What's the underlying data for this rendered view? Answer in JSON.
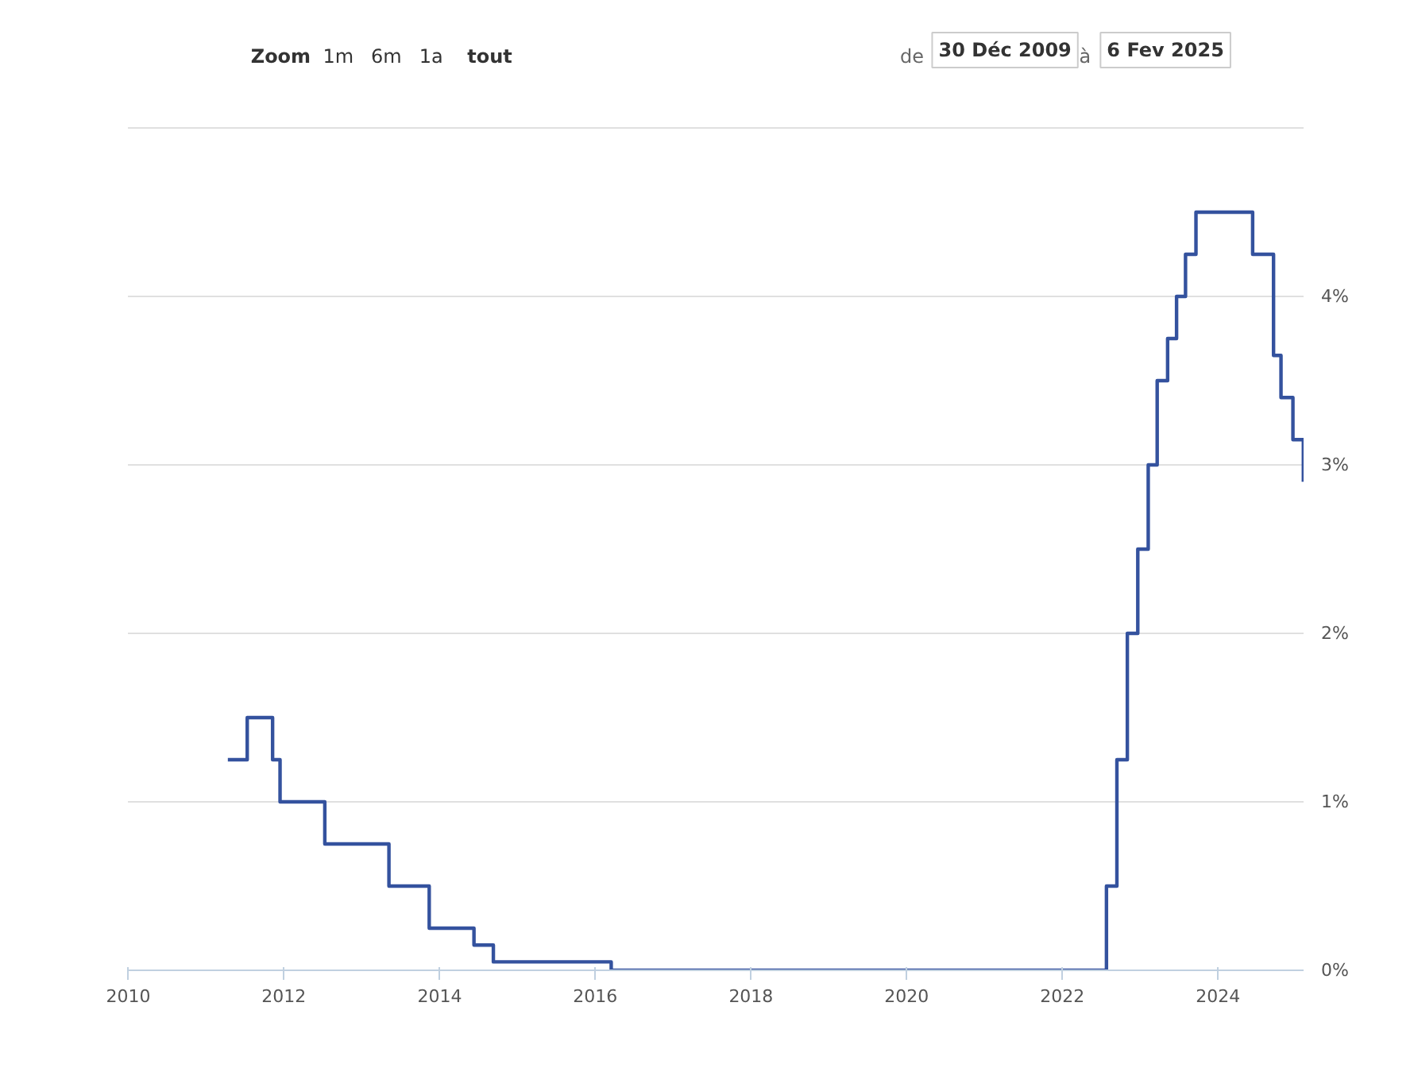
{
  "chart_data": {
    "type": "step",
    "annotations": [
      "Zoom",
      "1m",
      "6m",
      "1a",
      "tout",
      "de",
      "30 Déc 2009",
      "à",
      "6 Fev 2025"
    ],
    "x": [
      "2011-04-13",
      "2011-07-13",
      "2011-11-09",
      "2011-12-14",
      "2012-07-11",
      "2013-05-08",
      "2013-11-13",
      "2014-06-11",
      "2014-09-10",
      "2016-03-16",
      "2022-07-27",
      "2022-09-14",
      "2022-11-02",
      "2022-12-21",
      "2023-02-08",
      "2023-03-22",
      "2023-05-10",
      "2023-06-21",
      "2023-08-02",
      "2023-09-20",
      "2024-06-12",
      "2024-09-18",
      "2024-10-23",
      "2024-12-18",
      "2025-02-05"
    ],
    "series": [
      {
        "color": "#34529e",
        "values": [
          1.25,
          1.5,
          1.25,
          1.0,
          0.75,
          0.5,
          0.25,
          0.15,
          0.05,
          0.0,
          0.5,
          1.25,
          2.0,
          2.5,
          3.0,
          3.5,
          3.75,
          4.0,
          4.25,
          4.5,
          4.25,
          3.65,
          3.4,
          3.15,
          2.9
        ]
      }
    ],
    "xlim": [
      "2009-12-30",
      "2025-02-06"
    ],
    "xticks": [
      {
        "value": "2010-01-01",
        "label": "2010"
      },
      {
        "value": "2012-01-01",
        "label": "2012"
      },
      {
        "value": "2014-01-01",
        "label": "2014"
      },
      {
        "value": "2016-01-01",
        "label": "2016"
      },
      {
        "value": "2018-01-01",
        "label": "2018"
      },
      {
        "value": "2020-01-01",
        "label": "2020"
      },
      {
        "value": "2022-01-01",
        "label": "2022"
      },
      {
        "value": "2024-01-01",
        "label": "2024"
      }
    ],
    "ylim": [
      0,
      5
    ],
    "yticks": [
      {
        "value": 0,
        "label": "0%"
      },
      {
        "value": 1,
        "label": "1%"
      },
      {
        "value": 2,
        "label": "2%"
      },
      {
        "value": 3,
        "label": "3%"
      },
      {
        "value": 4,
        "label": "4%"
      }
    ],
    "grid": "y",
    "line_style": "solid"
  }
}
